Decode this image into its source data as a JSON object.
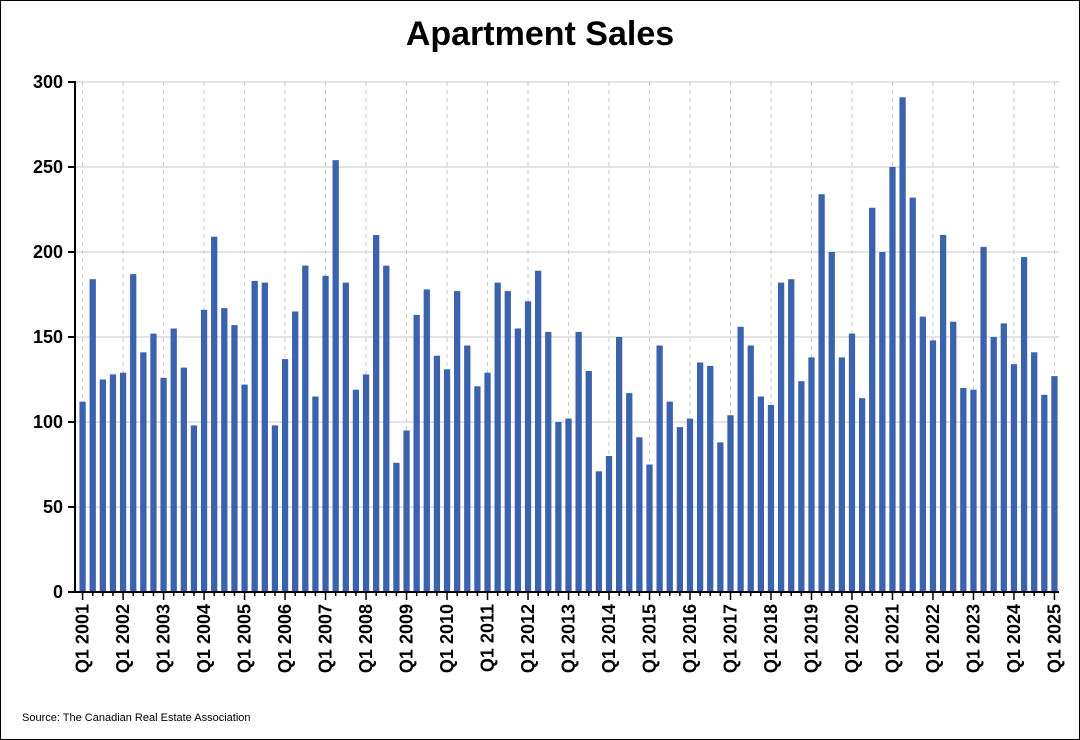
{
  "chart_data": {
    "type": "bar",
    "title": "Apartment Sales",
    "xlabel": "",
    "ylabel": "",
    "ylim": [
      0,
      300
    ],
    "yticks": [
      0,
      50,
      100,
      150,
      200,
      250,
      300
    ],
    "grid": "horizontal solid; vertical dashed at year starts",
    "bar_color": "#3a62ad",
    "source": "Source: The Canadian Real Estate Association",
    "x_tick_labels": [
      "Q1 2001",
      "Q1 2002",
      "Q1 2003",
      "Q1 2004",
      "Q1 2005",
      "Q1 2006",
      "Q1 2007",
      "Q1 2008",
      "Q1 2009",
      "Q1 2010",
      "Q1 2011",
      "Q1 2012",
      "Q1 2013",
      "Q1 2014",
      "Q1 2015",
      "Q1 2016",
      "Q1 2017",
      "Q1 2018",
      "Q1 2019",
      "Q1 2020",
      "Q1 2021",
      "Q1 2022",
      "Q1 2023",
      "Q1 2024",
      "Q1 2025"
    ],
    "categories": [
      "Q1 2001",
      "Q2 2001",
      "Q3 2001",
      "Q4 2001",
      "Q1 2002",
      "Q2 2002",
      "Q3 2002",
      "Q4 2002",
      "Q1 2003",
      "Q2 2003",
      "Q3 2003",
      "Q4 2003",
      "Q1 2004",
      "Q2 2004",
      "Q3 2004",
      "Q4 2004",
      "Q1 2005",
      "Q2 2005",
      "Q3 2005",
      "Q4 2005",
      "Q1 2006",
      "Q2 2006",
      "Q3 2006",
      "Q4 2006",
      "Q1 2007",
      "Q2 2007",
      "Q3 2007",
      "Q4 2007",
      "Q1 2008",
      "Q2 2008",
      "Q3 2008",
      "Q4 2008",
      "Q1 2009",
      "Q2 2009",
      "Q3 2009",
      "Q4 2009",
      "Q1 2010",
      "Q2 2010",
      "Q3 2010",
      "Q4 2010",
      "Q1 2011",
      "Q2 2011",
      "Q3 2011",
      "Q4 2011",
      "Q1 2012",
      "Q2 2012",
      "Q3 2012",
      "Q4 2012",
      "Q1 2013",
      "Q2 2013",
      "Q3 2013",
      "Q4 2013",
      "Q1 2014",
      "Q2 2014",
      "Q3 2014",
      "Q4 2014",
      "Q1 2015",
      "Q2 2015",
      "Q3 2015",
      "Q4 2015",
      "Q1 2016",
      "Q2 2016",
      "Q3 2016",
      "Q4 2016",
      "Q1 2017",
      "Q2 2017",
      "Q3 2017",
      "Q4 2017",
      "Q1 2018",
      "Q2 2018",
      "Q3 2018",
      "Q4 2018",
      "Q1 2019",
      "Q2 2019",
      "Q3 2019",
      "Q4 2019",
      "Q1 2020",
      "Q2 2020",
      "Q3 2020",
      "Q4 2020",
      "Q1 2021",
      "Q2 2021",
      "Q3 2021",
      "Q4 2021",
      "Q1 2022",
      "Q2 2022",
      "Q3 2022",
      "Q4 2022",
      "Q1 2023",
      "Q2 2023",
      "Q3 2023",
      "Q4 2023",
      "Q1 2024",
      "Q2 2024",
      "Q3 2024",
      "Q4 2024",
      "Q1 2025"
    ],
    "values": [
      112,
      184,
      125,
      128,
      129,
      187,
      141,
      152,
      126,
      155,
      132,
      98,
      166,
      209,
      167,
      157,
      122,
      183,
      182,
      98,
      137,
      165,
      192,
      115,
      186,
      254,
      182,
      119,
      128,
      210,
      192,
      76,
      95,
      163,
      178,
      139,
      131,
      177,
      145,
      121,
      129,
      182,
      177,
      155,
      171,
      189,
      153,
      100,
      102,
      153,
      130,
      71,
      80,
      150,
      117,
      91,
      75,
      145,
      112,
      97,
      102,
      135,
      133,
      88,
      104,
      156,
      145,
      115,
      110,
      182,
      184,
      124,
      138,
      234,
      200,
      138,
      152,
      114,
      226,
      200,
      250,
      291,
      232,
      162,
      148,
      210,
      159,
      120,
      119,
      203,
      150,
      158,
      134,
      197,
      141,
      116,
      127
    ]
  }
}
